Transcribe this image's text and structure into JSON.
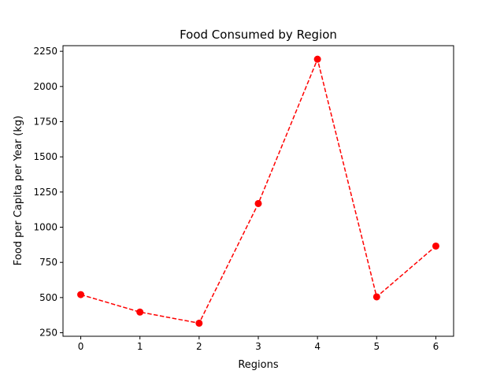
{
  "chart_data": {
    "type": "line",
    "title": "Food Consumed by Region",
    "xlabel": "Regions",
    "ylabel": "Food per Capita per Year (kg)",
    "x": [
      0,
      1,
      2,
      3,
      4,
      5,
      6
    ],
    "series": [
      {
        "values": [
          521,
          397,
          318,
          1168,
          2194,
          505,
          866
        ]
      }
    ],
    "xlim": [
      -0.3,
      6.3
    ],
    "ylim": [
      225,
      2290
    ],
    "xticks": [
      0,
      1,
      2,
      3,
      4,
      5,
      6
    ],
    "yticks": [
      250,
      500,
      750,
      1000,
      1250,
      1500,
      1750,
      2000,
      2250
    ],
    "grid": false,
    "line_style": "dashed",
    "marker": "circle",
    "color": "#ff0000"
  }
}
